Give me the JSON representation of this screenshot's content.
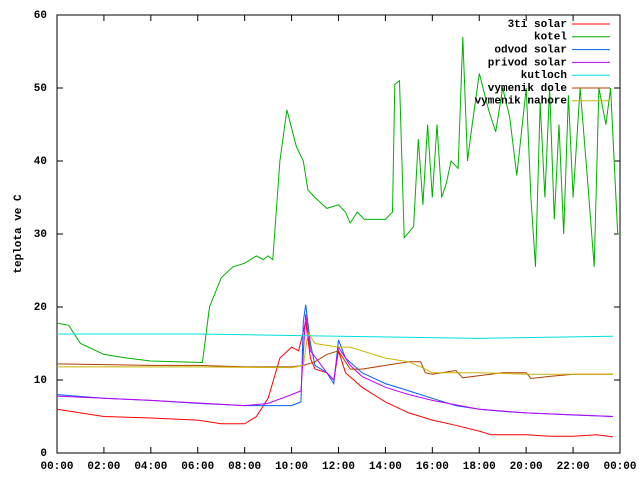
{
  "chart_data": {
    "type": "line",
    "ylabel": "teplota ve C",
    "xlim": [
      0,
      24
    ],
    "ylim": [
      0,
      60
    ],
    "yticks": [
      0,
      10,
      20,
      30,
      40,
      50,
      60
    ],
    "xticks": [
      {
        "value": 0,
        "label": "00:00"
      },
      {
        "value": 2,
        "label": "02:00"
      },
      {
        "value": 4,
        "label": "04:00"
      },
      {
        "value": 6,
        "label": "06:00"
      },
      {
        "value": 8,
        "label": "08:00"
      },
      {
        "value": 10,
        "label": "10:00"
      },
      {
        "value": 12,
        "label": "12:00"
      },
      {
        "value": 14,
        "label": "14:00"
      },
      {
        "value": 16,
        "label": "16:00"
      },
      {
        "value": 18,
        "label": "18:00"
      },
      {
        "value": 20,
        "label": "20:00"
      },
      {
        "value": 22,
        "label": "22:00"
      },
      {
        "value": 24,
        "label": "00:00"
      }
    ],
    "legend": "top-right",
    "series": [
      {
        "name": "3ti solar",
        "color": "#ff0000",
        "x": [
          0,
          1,
          2,
          4,
          6,
          7,
          8,
          8.5,
          9,
          9.5,
          10,
          10.3,
          10.6,
          10.8,
          11,
          11.5,
          11.8,
          12,
          12.3,
          13,
          14,
          15,
          16,
          17,
          18,
          18.5,
          20,
          21,
          22,
          23,
          23.7
        ],
        "values": [
          6,
          5.5,
          5,
          4.8,
          4.5,
          4,
          4,
          5,
          7.5,
          13,
          14.5,
          14,
          18,
          13,
          11.5,
          11,
          10,
          14,
          11,
          9,
          7,
          5.5,
          4.5,
          3.8,
          3,
          2.5,
          2.5,
          2.3,
          2.3,
          2.5,
          2.2
        ]
      },
      {
        "name": "kotel",
        "color": "#00b000",
        "x": [
          0,
          0.5,
          1,
          2,
          3,
          4,
          6.2,
          6.5,
          7,
          7.5,
          8,
          8.5,
          8.8,
          9,
          9.2,
          9.5,
          9.8,
          10.2,
          10.5,
          10.7,
          11,
          11.5,
          12,
          12.3,
          12.5,
          12.8,
          13.1,
          14,
          14.3,
          14.4,
          14.6,
          14.8,
          15.2,
          15.4,
          15.6,
          15.8,
          16,
          16.2,
          16.4,
          16.6,
          16.8,
          17.1,
          17.3,
          17.5,
          17.7,
          18,
          18.4,
          18.7,
          19,
          19.3,
          19.6,
          20,
          20.2,
          20.4,
          20.6,
          20.8,
          21,
          21.2,
          21.4,
          21.6,
          21.8,
          22,
          22.3,
          22.6,
          22.9,
          23.1,
          23.4,
          23.6,
          23.9,
          24
        ],
        "values": [
          17.8,
          17.5,
          15,
          13.5,
          13,
          12.6,
          12.4,
          20,
          24,
          25.5,
          26,
          27,
          26.5,
          27,
          26.5,
          40,
          47,
          42,
          40,
          36,
          35,
          33.5,
          34,
          33,
          31.5,
          33,
          32,
          32,
          33,
          50.5,
          51,
          29.5,
          31,
          43,
          34,
          45,
          35,
          45,
          35,
          37,
          40,
          39,
          57,
          40,
          45,
          52,
          47,
          44,
          50,
          46,
          38,
          50,
          35,
          25.5,
          48,
          35,
          50,
          32,
          45,
          30,
          49,
          35,
          50,
          38,
          25.5,
          50,
          45,
          50,
          30,
          30
        ]
      },
      {
        "name": "odvod solar",
        "color": "#0060ff",
        "x": [
          0,
          2,
          4,
          6,
          8,
          10,
          10.4,
          10.5,
          10.6,
          10.8,
          11,
          11.5,
          11.8,
          12,
          12.3,
          13,
          14,
          15,
          16,
          17,
          18,
          19,
          20,
          22,
          23.7
        ],
        "values": [
          8,
          7.5,
          7.2,
          6.8,
          6.5,
          6.5,
          7,
          18,
          20.3,
          15,
          12,
          11,
          9.5,
          15.5,
          13,
          11,
          9.5,
          8.5,
          7.5,
          6.5,
          6,
          5.7,
          5.5,
          5.2,
          5
        ]
      },
      {
        "name": "privod solar",
        "color": "#c000ff",
        "x": [
          0,
          4,
          8,
          9,
          10,
          10.4,
          10.6,
          10.8,
          11.5,
          11.8,
          12,
          12.5,
          13,
          14,
          15,
          16,
          18,
          20,
          23.7
        ],
        "values": [
          7.8,
          7.2,
          6.5,
          6.8,
          8,
          8.5,
          19,
          14,
          11,
          10,
          14.5,
          12,
          10.5,
          9,
          8,
          7.2,
          6,
          5.5,
          5
        ]
      },
      {
        "name": "kutloch",
        "color": "#00e0e0",
        "x": [
          0,
          6,
          12,
          18,
          23.7
        ],
        "values": [
          16.3,
          16.3,
          16,
          15.7,
          16
        ]
      },
      {
        "name": "vymenik dole",
        "color": "#b04000",
        "x": [
          0,
          4,
          6,
          8,
          10,
          10.5,
          11,
          11.5,
          12,
          12.5,
          13,
          14,
          15,
          15.5,
          15.7,
          16,
          17,
          17.3,
          18,
          19,
          20,
          20.2,
          21,
          22,
          23.7
        ],
        "values": [
          12.2,
          12,
          12,
          11.8,
          11.8,
          12,
          12.5,
          13.5,
          14,
          11.5,
          11.5,
          12,
          12.5,
          12.5,
          11,
          10.8,
          11.3,
          10.3,
          10.6,
          11,
          11,
          10.2,
          10.5,
          10.8,
          10.8
        ]
      },
      {
        "name": "vymenik nahore",
        "color": "#c8b400",
        "x": [
          0,
          6,
          10,
          10.5,
          10.7,
          11,
          12,
          12.5,
          13,
          14,
          15,
          15.7,
          16,
          17,
          18,
          20,
          23.7
        ],
        "values": [
          11.8,
          11.8,
          11.7,
          12,
          16.5,
          15,
          14.5,
          14.5,
          14,
          13,
          12.5,
          11.5,
          11,
          11,
          11,
          10.8,
          10.8
        ]
      }
    ]
  }
}
